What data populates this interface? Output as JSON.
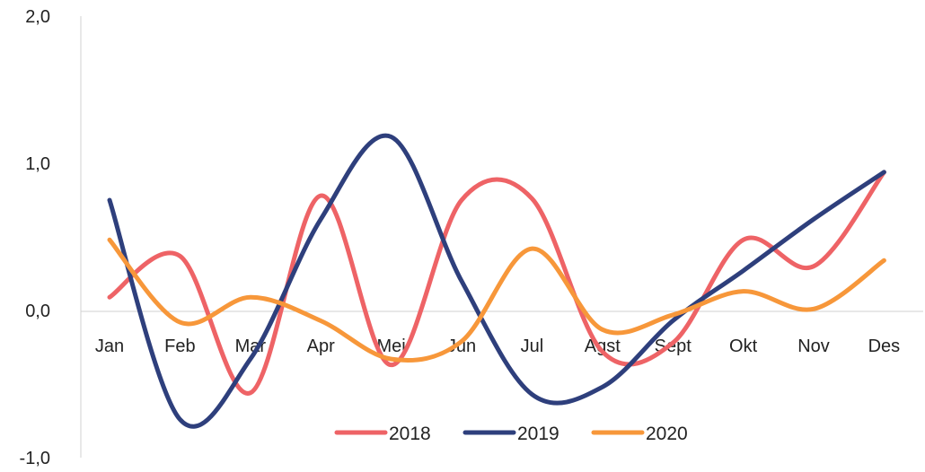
{
  "chart_data": {
    "type": "line",
    "title": "",
    "xlabel": "",
    "ylabel": "",
    "categories": [
      "Jan",
      "Feb",
      "Mar",
      "Apr",
      "Mei",
      "Jun",
      "Jul",
      "Agst",
      "Sept",
      "Okt",
      "Nov",
      "Des"
    ],
    "y_ticks": [
      "2,0",
      "1,0",
      "0,0",
      "-1,0"
    ],
    "ylim": [
      -1,
      2
    ],
    "grid": false,
    "smooth": true,
    "legend_position": "bottom",
    "series": [
      {
        "name": "2018",
        "color": "#EE6366",
        "values": [
          0.09,
          0.37,
          -0.56,
          0.78,
          -0.37,
          0.75,
          0.76,
          -0.28,
          -0.22,
          0.48,
          0.3,
          0.94
        ]
      },
      {
        "name": "2019",
        "color": "#2E3F7C",
        "values": [
          0.75,
          -0.74,
          -0.33,
          0.62,
          1.18,
          0.2,
          -0.57,
          -0.52,
          -0.07,
          0.27,
          0.62,
          0.94
        ]
      },
      {
        "name": "2020",
        "color": "#F7973A",
        "values": [
          0.48,
          -0.08,
          0.09,
          -0.07,
          -0.33,
          -0.21,
          0.42,
          -0.13,
          -0.03,
          0.13,
          0.01,
          0.34
        ]
      }
    ]
  }
}
